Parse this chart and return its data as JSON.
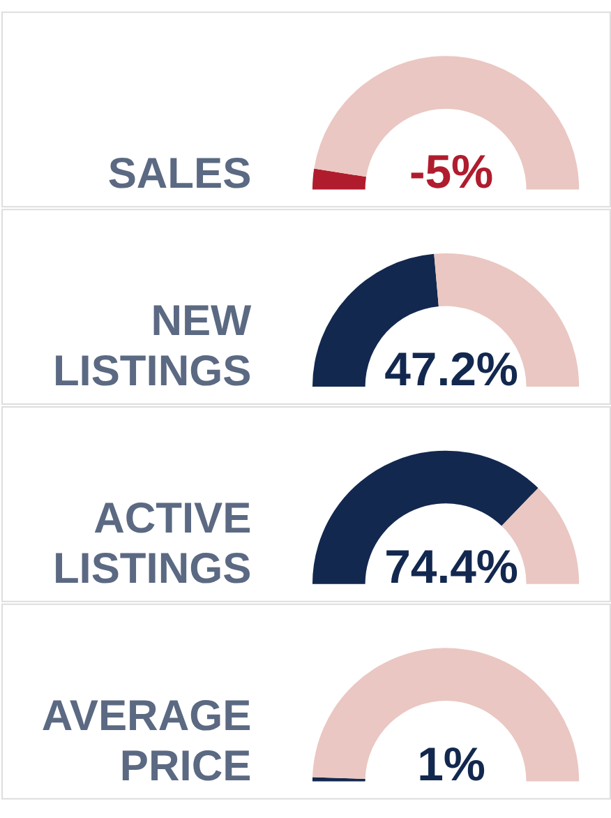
{
  "chart_data": [
    {
      "type": "donut",
      "title": "SALES",
      "categories": [
        null,
        null
      ],
      "values": [
        5,
        95
      ],
      "colors": [
        "#b01c2e",
        "#eac7c2"
      ],
      "annotations": [
        "-5%"
      ]
    },
    {
      "type": "donut",
      "title": "NEW LISTINGS",
      "categories": [
        null,
        null
      ],
      "values": [
        47.2,
        52.8
      ],
      "colors": [
        "#13284f",
        "#eac7c2"
      ],
      "annotations": [
        "47.2%"
      ]
    },
    {
      "type": "donut",
      "title": "ACTIVE LISTINGS",
      "categories": [
        null,
        null
      ],
      "values": [
        74.4,
        25.6
      ],
      "colors": [
        "#13284f",
        "#eac7c2"
      ],
      "annotations": [
        "74.4%"
      ]
    },
    {
      "type": "donut",
      "title": "AVERAGE PRICE",
      "categories": [
        null,
        null
      ],
      "values": [
        1,
        99
      ],
      "colors": [
        "#13284f",
        "#eac7c2"
      ],
      "annotations": [
        "1%"
      ]
    }
  ]
}
